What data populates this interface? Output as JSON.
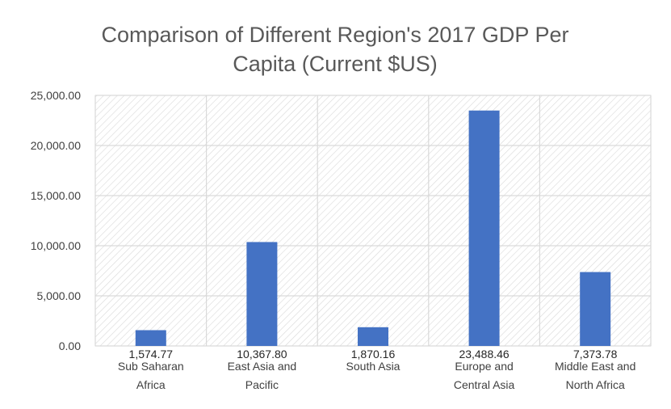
{
  "chart_data": {
    "type": "bar",
    "title_lines": [
      "Comparison of Different Region's 2017 GDP Per",
      "Capita (Current $US)"
    ],
    "categories": [
      [
        "Sub Saharan",
        "Africa"
      ],
      [
        "East Asia and",
        "Pacific"
      ],
      [
        "South Asia"
      ],
      [
        "Europe and",
        "Central Asia"
      ],
      [
        "Middle East and",
        "North Africa"
      ]
    ],
    "values": [
      1574.77,
      10367.8,
      1870.16,
      23488.46,
      7373.78
    ],
    "data_labels": [
      "1,574.77",
      "10,367.80",
      "1,870.16",
      "23,488.46",
      "7,373.78"
    ],
    "yticks": [
      "0.00",
      "5,000.00",
      "10,000.00",
      "15,000.00",
      "20,000.00",
      "25,000.00"
    ],
    "ylim": [
      0,
      25000
    ],
    "grid": true,
    "legend": "none",
    "colors": {
      "bar": "#4472C4",
      "grid": "#d9d9d9",
      "hatch": "#d9d9d9",
      "title": "#595959"
    }
  }
}
